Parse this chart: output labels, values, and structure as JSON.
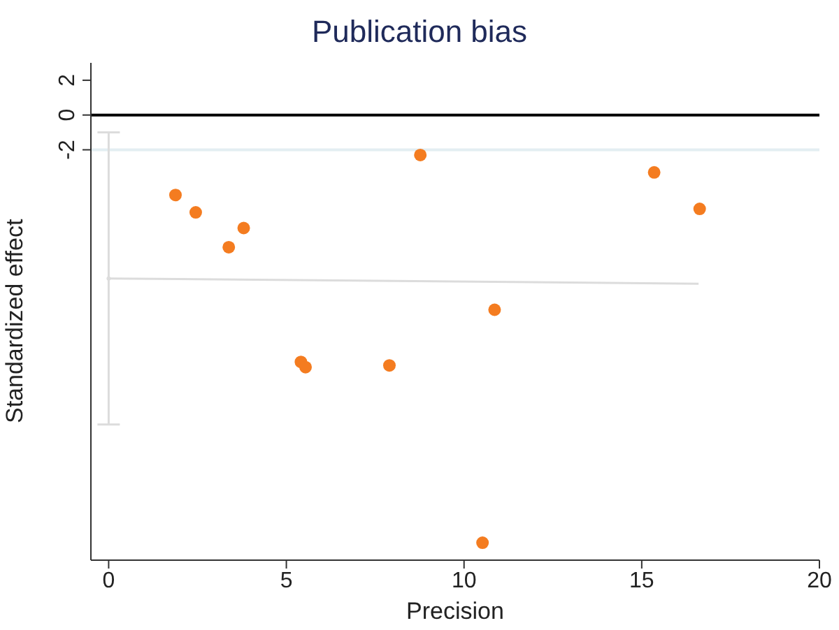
{
  "chart_data": {
    "type": "scatter",
    "title": "Publication bias",
    "xlabel": "Precision",
    "ylabel": "Standardized effect",
    "xlim": [
      -0.5,
      20
    ],
    "xticks": [
      0,
      5,
      10,
      15,
      20
    ],
    "ylim": [
      -25.6,
      3
    ],
    "yticks": [
      2,
      0,
      -2
    ],
    "marker": "circle",
    "series": [
      {
        "color": "#f47c20",
        "x": [
          1.88,
          2.45,
          3.38,
          3.8,
          5.41,
          5.54,
          7.9,
          8.77,
          10.86,
          10.52,
          15.35,
          16.63
        ],
        "values": [
          -4.6,
          -5.6,
          -7.6,
          -6.5,
          -14.2,
          -14.5,
          -14.4,
          -2.3,
          -11.2,
          -24.6,
          -3.3,
          -5.4
        ]
      },
      {
        "type": "line",
        "color": "#dcdcdc",
        "marker": "none",
        "x": [
          0,
          16.6
        ],
        "values": [
          -9.4,
          -9.7
        ]
      },
      {
        "type": "scatter",
        "color": "#dcdcdc",
        "marker": "circle",
        "x": [
          0
        ],
        "values": [
          -9.4
        ],
        "errors": [
          [
            -17.8,
            -1.0
          ]
        ]
      }
    ],
    "ref_lines": [
      {
        "axis": "y",
        "value": 0,
        "color": "#000000"
      },
      {
        "axis": "y",
        "value": -2,
        "color": "#e3eef2"
      }
    ]
  }
}
